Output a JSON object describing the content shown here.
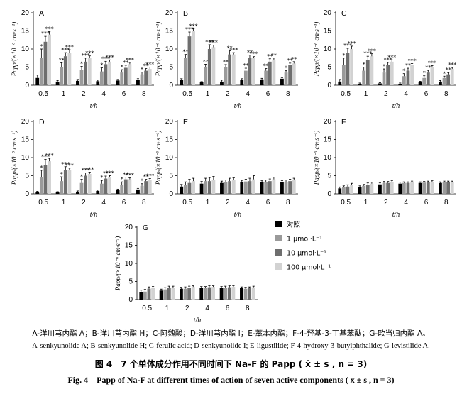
{
  "figure_caption": {
    "legend_zh": "A-洋川芎内酯 A；B-洋川芎内酯 H；C-阿魏酸；D-洋川芎内酯 I；E-藁本内酯；F-4-羟基-3-丁基苯酞；G-欧当归内酯 A。",
    "legend_en": "A-senkyunolide A; B-senkyunolide H; C-ferulic acid; D-senkyunolide I; E-ligustilide; F-4-hydroxy-3-butylphthalide; G-levistilide A.",
    "title_zh": "图 4　7 个单体成分作用不同时间下 Na-F 的 Papp ( x̄ ± s , n = 3)",
    "title_en": "Fig. 4　Papp of Na-F at different times of action of seven active components ( x̄ ± s , n = 3)"
  },
  "legend": {
    "items": [
      {
        "label": "对照",
        "color": "#000000"
      },
      {
        "label": "1 μmol·L⁻¹",
        "color": "#9a9a9a"
      },
      {
        "label": "10 μmol·L⁻¹",
        "color": "#6e6e6e"
      },
      {
        "label": "100 μmol·L⁻¹",
        "color": "#d2d2d2"
      }
    ]
  },
  "chart_data": [
    {
      "panel": "A",
      "type": "bar",
      "ylabel": "Papp/(×10⁻⁶ cm·s⁻¹)",
      "xlabel": "t/h",
      "ylim": [
        0,
        20
      ],
      "yticks": [
        0,
        5,
        10,
        15,
        20
      ],
      "categories": [
        "0.5",
        "1",
        "2",
        "4",
        "6",
        "8"
      ],
      "series": [
        {
          "name": "对照",
          "values": [
            2.0,
            1.0,
            1.2,
            1.1,
            1.3,
            1.4
          ],
          "errors": [
            0.8,
            0.3,
            0.4,
            0.3,
            0.3,
            0.4
          ]
        },
        {
          "name": "1 μmol·L⁻¹",
          "values": [
            7.5,
            5.0,
            4.2,
            3.8,
            3.5,
            3.0
          ],
          "errors": [
            2.5,
            1.2,
            1.0,
            1.0,
            0.8,
            0.6
          ],
          "sig": [
            "*",
            "**",
            "*",
            "*",
            "*",
            "*"
          ]
        },
        {
          "name": "10 μmol·L⁻¹",
          "values": [
            12.0,
            8.0,
            6.5,
            5.8,
            4.8,
            4.0
          ],
          "errors": [
            1.5,
            1.0,
            1.0,
            0.8,
            0.7,
            0.6
          ],
          "sig": [
            "***",
            "***",
            "***",
            "***",
            "**",
            "**"
          ]
        },
        {
          "name": "100 μmol·L⁻¹",
          "values": [
            14.0,
            9.0,
            7.5,
            6.5,
            5.8,
            4.5
          ],
          "errors": [
            0.8,
            0.8,
            0.6,
            0.5,
            0.5,
            0.5
          ],
          "sig": [
            "***",
            "***",
            "***",
            "***",
            "***",
            "***"
          ]
        }
      ]
    },
    {
      "panel": "B",
      "type": "bar",
      "ylabel": "Papp/(×10⁻⁶ cm·s⁻¹)",
      "xlabel": "t/h",
      "ylim": [
        0,
        20
      ],
      "yticks": [
        0,
        5,
        10,
        15,
        20
      ],
      "categories": [
        "0.5",
        "1",
        "2",
        "4",
        "6",
        "8"
      ],
      "series": [
        {
          "name": "对照",
          "values": [
            1.5,
            0.8,
            1.0,
            1.4,
            1.6,
            1.8
          ],
          "errors": [
            0.3,
            0.2,
            0.4,
            0.4,
            0.3,
            0.3
          ]
        },
        {
          "name": "1 μmol·L⁻¹",
          "values": [
            7.5,
            5.0,
            5.0,
            4.0,
            4.0,
            3.5
          ],
          "errors": [
            1.0,
            0.8,
            0.7,
            0.7,
            0.6,
            0.5
          ],
          "sig": [
            "**",
            "**",
            "**",
            "**",
            "**",
            "*"
          ]
        },
        {
          "name": "10 μmol·L⁻¹",
          "values": [
            13.5,
            10.0,
            8.5,
            7.5,
            6.5,
            5.5
          ],
          "errors": [
            1.2,
            1.2,
            1.0,
            0.8,
            0.8,
            0.6
          ],
          "sig": [
            "***",
            "***",
            "**",
            "**",
            "**",
            "**"
          ]
        },
        {
          "name": "100 μmol·L⁻¹",
          "values": [
            15.0,
            10.5,
            8.5,
            7.5,
            7.0,
            6.0
          ],
          "errors": [
            0.6,
            0.6,
            0.5,
            0.4,
            0.5,
            0.5
          ],
          "sig": [
            "***",
            "***",
            "***",
            "***",
            "**",
            "**"
          ]
        }
      ]
    },
    {
      "panel": "C",
      "type": "bar",
      "ylabel": "Papp/(×10⁻⁶ cm·s⁻¹)",
      "xlabel": "t/h",
      "ylim": [
        0,
        20
      ],
      "yticks": [
        0,
        5,
        10,
        15,
        20
      ],
      "categories": [
        "0.5",
        "1",
        "2",
        "4",
        "6",
        "8"
      ],
      "series": [
        {
          "name": "对照",
          "values": [
            1.0,
            0.4,
            0.5,
            0.4,
            0.8,
            1.0
          ],
          "errors": [
            0.6,
            0.2,
            0.2,
            0.2,
            0.3,
            0.3
          ]
        },
        {
          "name": "1 μmol·L⁻¹",
          "values": [
            5.5,
            4.0,
            3.5,
            2.5,
            2.0,
            2.0
          ],
          "errors": [
            2.0,
            1.0,
            1.0,
            0.7,
            0.6,
            0.5
          ],
          "sig": [
            "*",
            "*",
            "*",
            "*",
            "*",
            "*"
          ]
        },
        {
          "name": "10 μmol·L⁻¹",
          "values": [
            9.0,
            7.0,
            5.5,
            4.0,
            3.5,
            3.0
          ],
          "errors": [
            1.2,
            1.0,
            0.8,
            0.7,
            0.6,
            0.5
          ],
          "sig": [
            "***",
            "***",
            "***",
            "**",
            "**",
            "**"
          ]
        },
        {
          "name": "100 μmol·L⁻¹",
          "values": [
            10.0,
            8.0,
            6.5,
            5.5,
            5.0,
            4.5
          ],
          "errors": [
            0.8,
            0.7,
            0.5,
            0.5,
            0.4,
            0.4
          ],
          "sig": [
            "***",
            "***",
            "***",
            "***",
            "***",
            "***"
          ]
        }
      ]
    },
    {
      "panel": "D",
      "type": "bar",
      "ylabel": "Papp/(×10⁻⁶ cm·s⁻¹)",
      "xlabel": "t/h",
      "ylim": [
        0,
        20
      ],
      "yticks": [
        0,
        5,
        10,
        15,
        20
      ],
      "categories": [
        "0.5",
        "1",
        "2",
        "4",
        "6",
        "8"
      ],
      "series": [
        {
          "name": "对照",
          "values": [
            0.5,
            0.4,
            0.6,
            0.8,
            1.0,
            1.2
          ],
          "errors": [
            0.2,
            0.2,
            0.2,
            0.3,
            0.3,
            0.3
          ]
        },
        {
          "name": "1 μmol·L⁻¹",
          "values": [
            4.5,
            3.5,
            3.0,
            2.8,
            2.5,
            2.2
          ],
          "errors": [
            2.0,
            1.2,
            1.0,
            0.9,
            0.8,
            0.6
          ],
          "sig": [
            "*",
            "*",
            "*",
            "*",
            "*",
            "*"
          ]
        },
        {
          "name": "10 μmol·L⁻¹",
          "values": [
            8.0,
            6.5,
            5.0,
            4.2,
            4.0,
            3.5
          ],
          "errors": [
            1.5,
            1.0,
            0.8,
            0.7,
            0.6,
            0.5
          ],
          "sig": [
            "***",
            "***",
            "***",
            "**",
            "**",
            "**"
          ]
        },
        {
          "name": "100 μmol·L⁻¹",
          "values": [
            9.0,
            6.5,
            5.5,
            4.5,
            4.0,
            3.8
          ],
          "errors": [
            0.8,
            0.6,
            0.5,
            0.5,
            0.4,
            0.4
          ],
          "sig": [
            "***",
            "***",
            "***",
            "***",
            "***",
            "***"
          ]
        }
      ]
    },
    {
      "panel": "E",
      "type": "bar",
      "ylabel": "Papp/(×10⁻⁶ cm·s⁻¹)",
      "xlabel": "t/h",
      "ylim": [
        0,
        20
      ],
      "yticks": [
        0,
        5,
        10,
        15,
        20
      ],
      "categories": [
        "0.5",
        "1",
        "2",
        "4",
        "6",
        "8"
      ],
      "series": [
        {
          "name": "对照",
          "values": [
            2.0,
            2.8,
            3.0,
            3.2,
            3.2,
            3.2
          ],
          "errors": [
            0.6,
            0.6,
            0.5,
            0.5,
            0.4,
            0.4
          ]
        },
        {
          "name": "1 μmol·L⁻¹",
          "values": [
            2.5,
            3.5,
            3.2,
            3.4,
            3.3,
            3.3
          ],
          "errors": [
            0.8,
            0.8,
            0.6,
            0.6,
            0.5,
            0.5
          ]
        },
        {
          "name": "10 μmol·L⁻¹",
          "values": [
            3.0,
            3.5,
            3.5,
            3.5,
            3.5,
            3.5
          ],
          "errors": [
            1.0,
            1.0,
            0.8,
            0.8,
            0.6,
            0.5
          ]
        },
        {
          "name": "100 μmol·L⁻¹",
          "values": [
            3.5,
            3.8,
            3.8,
            4.0,
            4.0,
            3.8
          ],
          "errors": [
            0.8,
            1.0,
            0.6,
            1.0,
            0.6,
            0.5
          ]
        }
      ]
    },
    {
      "panel": "F",
      "type": "bar",
      "ylabel": "Papp/(×10⁻⁶ cm·s⁻¹)",
      "xlabel": "t/h",
      "ylim": [
        0,
        20
      ],
      "yticks": [
        0,
        5,
        10,
        15,
        20
      ],
      "categories": [
        "0.5",
        "1",
        "2",
        "4",
        "6",
        "8"
      ],
      "series": [
        {
          "name": "对照",
          "values": [
            1.5,
            1.8,
            2.6,
            2.8,
            3.0,
            3.0
          ],
          "errors": [
            0.4,
            0.4,
            0.4,
            0.4,
            0.3,
            0.3
          ]
        },
        {
          "name": "1 μmol·L⁻¹",
          "values": [
            1.8,
            2.2,
            3.0,
            3.0,
            3.1,
            3.2
          ],
          "errors": [
            0.4,
            0.4,
            0.4,
            0.3,
            0.3,
            0.3
          ]
        },
        {
          "name": "10 μmol·L⁻¹",
          "values": [
            2.0,
            2.5,
            3.0,
            3.0,
            3.2,
            3.2
          ],
          "errors": [
            0.5,
            0.5,
            0.4,
            0.3,
            0.3,
            0.3
          ]
        },
        {
          "name": "100 μmol·L⁻¹",
          "values": [
            2.5,
            2.8,
            3.3,
            3.2,
            3.3,
            3.2
          ],
          "errors": [
            0.4,
            0.4,
            0.3,
            0.3,
            0.3,
            0.3
          ]
        }
      ]
    },
    {
      "panel": "G",
      "type": "bar",
      "ylabel": "Papp/(×10⁻⁶ cm·s⁻¹)",
      "xlabel": "t/h",
      "ylim": [
        0,
        20
      ],
      "yticks": [
        0,
        5,
        10,
        15,
        20
      ],
      "categories": [
        "0.5",
        "1",
        "2",
        "4",
        "6",
        "8"
      ],
      "series": [
        {
          "name": "对照",
          "values": [
            2.0,
            2.5,
            3.0,
            3.2,
            3.2,
            3.2
          ],
          "errors": [
            0.6,
            0.4,
            0.4,
            0.4,
            0.4,
            0.3
          ]
        },
        {
          "name": "1 μmol·L⁻¹",
          "values": [
            2.2,
            2.8,
            3.0,
            3.2,
            3.3,
            3.0
          ],
          "errors": [
            0.6,
            0.5,
            0.5,
            0.4,
            0.4,
            0.4
          ]
        },
        {
          "name": "10 μmol·L⁻¹",
          "values": [
            3.0,
            3.2,
            3.3,
            3.4,
            3.4,
            3.2
          ],
          "errors": [
            0.5,
            0.5,
            0.4,
            0.4,
            0.4,
            0.3
          ]
        },
        {
          "name": "100 μmol·L⁻¹",
          "values": [
            3.2,
            3.3,
            3.5,
            3.5,
            3.5,
            3.4
          ],
          "errors": [
            0.4,
            0.4,
            0.3,
            0.3,
            0.3,
            0.3
          ]
        }
      ]
    }
  ]
}
